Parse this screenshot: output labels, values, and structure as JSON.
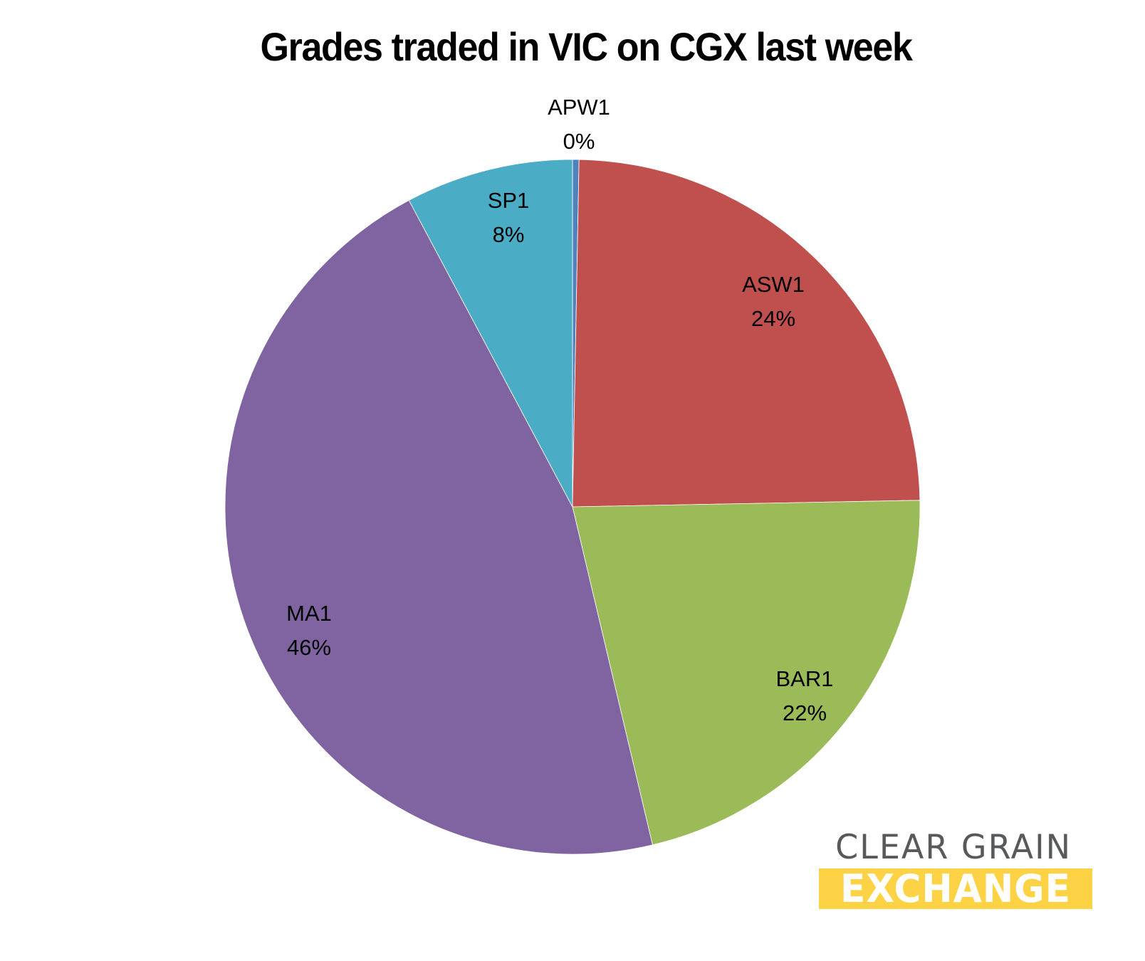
{
  "chart_data": {
    "type": "pie",
    "title": "Grades traded in VIC on CGX last week",
    "start_angle": "12 o'clock, clockwise",
    "categories": [
      "APW1",
      "ASW1",
      "BAR1",
      "MA1",
      "SP1"
    ],
    "values": [
      0.3,
      24.4,
      21.6,
      45.9,
      7.8
    ],
    "labels": [
      "0%",
      "24%",
      "22%",
      "46%",
      "8%"
    ],
    "colors": [
      "#4f81bd",
      "#c0504d",
      "#9bbb59",
      "#8064a2",
      "#4bacc6"
    ],
    "legend": "none (data labels show category name and percentage)"
  },
  "title": "Grades traded in VIC on CGX last week",
  "slices": [
    {
      "name": "APW1",
      "pct": "0%",
      "color": "#4f81bd"
    },
    {
      "name": "ASW1",
      "pct": "24%",
      "color": "#c0504d"
    },
    {
      "name": "BAR1",
      "pct": "22%",
      "color": "#9bbb59"
    },
    {
      "name": "MA1",
      "pct": "46%",
      "color": "#8064a2"
    },
    {
      "name": "SP1",
      "pct": "8%",
      "color": "#4bacc6"
    }
  ],
  "logo": {
    "line1": "CLEAR GRAIN",
    "line2": "EXCHANGE",
    "text_color": "#58595b",
    "bar_color": "#fdd345"
  }
}
